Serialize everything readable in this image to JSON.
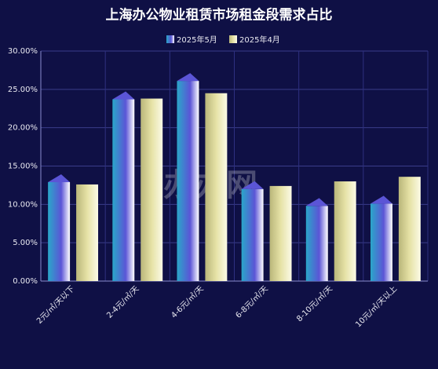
{
  "chart_data": {
    "type": "bar",
    "title": "上海办公物业租赁市场租金段需求占比",
    "watermark": "办办网",
    "categories": [
      "2元/㎡/天以下",
      "2-4元/㎡/天",
      "4-6元/㎡/天",
      "6-8元/㎡/天",
      "8-10元/㎡/天",
      "10元/㎡/天以上"
    ],
    "series": [
      {
        "name": "2025年5月",
        "color": "#5b55d6",
        "values": [
          12.9,
          23.7,
          26.1,
          12.0,
          9.8,
          10.1
        ]
      },
      {
        "name": "2025年4月",
        "color": "#e6e2a6",
        "values": [
          12.6,
          23.8,
          24.5,
          12.4,
          13.0,
          13.6
        ]
      }
    ],
    "ylim": [
      0,
      30
    ],
    "yticks": [
      {
        "value": 0,
        "label": "0.00%"
      },
      {
        "value": 5,
        "label": "5.00%"
      },
      {
        "value": 10,
        "label": "10.00%"
      },
      {
        "value": 15,
        "label": "15.00%"
      },
      {
        "value": 20,
        "label": "20.00%"
      },
      {
        "value": 25,
        "label": "25.00%"
      },
      {
        "value": 30,
        "label": "30.00%"
      }
    ],
    "grid": true
  }
}
